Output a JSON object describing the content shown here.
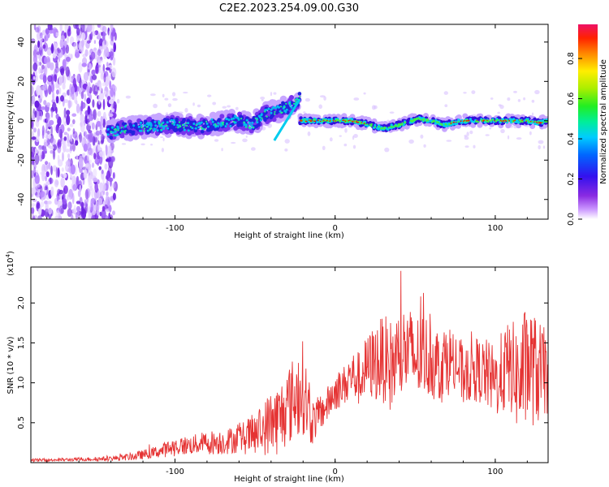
{
  "figure_title": "C2E2.2023.254.09.00.G30",
  "colors": {
    "snr_line": "#e53333",
    "axis": "#000000",
    "background": "#ffffff"
  },
  "chart_data": [
    {
      "type": "heatmap",
      "name": "spectrogram",
      "title": "C2E2.2023.254.09.00.G30",
      "xlabel": "Height of straight line (km)",
      "ylabel": "Frequency (Hz)",
      "xlim": [
        -190,
        133
      ],
      "ylim": [
        -50,
        49
      ],
      "xticks": [
        -100,
        0,
        100
      ],
      "xtick_labels": [
        "-100",
        "0",
        "100"
      ],
      "yticks": [
        -40,
        -20,
        0,
        20,
        40
      ],
      "ytick_labels": [
        "-40",
        "-20",
        "0",
        "20",
        "40"
      ],
      "ridge_segments": [
        {
          "x": [
            -142,
            -130,
            -115,
            -100,
            -85,
            -72,
            -62,
            -52,
            -44,
            -36,
            -30,
            -25,
            -22
          ],
          "y": [
            -6,
            -4,
            -3,
            -2,
            -3,
            -1,
            0,
            -2,
            3,
            5,
            7,
            9,
            11
          ]
        },
        {
          "x": [
            -22,
            -10,
            0,
            10,
            22,
            30,
            40,
            52,
            60,
            68,
            80,
            90,
            100,
            112,
            120,
            128,
            133
          ],
          "y": [
            0,
            0,
            0,
            0,
            -2,
            -4,
            -2,
            1,
            0,
            -2,
            0,
            0,
            0,
            0,
            0,
            -1,
            0
          ]
        }
      ],
      "noise_region_x": [
        -190,
        -137
      ],
      "colorbar": {
        "label": "Normalized spectral amplitude",
        "ticks": [
          0.0,
          0.2,
          0.4,
          0.6,
          0.8
        ],
        "tick_labels": [
          "0.0",
          "0.2",
          "0.4",
          "0.6",
          "0.8"
        ],
        "range": [
          0,
          0.97
        ]
      }
    },
    {
      "type": "line",
      "name": "snr",
      "xlabel": "Height of straight line (km)",
      "ylabel": "SNR (10 * v/v)",
      "multiplier_label": "(x10",
      "multiplier_exp": "4",
      "xlim": [
        -190,
        133
      ],
      "ylim": [
        0,
        2.45
      ],
      "xticks": [
        -100,
        0,
        100
      ],
      "xtick_labels": [
        "-100",
        "0",
        "100"
      ],
      "yticks": [
        0.5,
        1.0,
        1.5,
        2.0
      ],
      "ytick_labels": [
        "0.5",
        "1.0",
        "1.5",
        "2.0"
      ],
      "series": [
        {
          "name": "SNR",
          "x": [
            -190,
            -160,
            -140,
            -125,
            -110,
            -100,
            -90,
            -80,
            -70,
            -60,
            -50,
            -45,
            -40,
            -35,
            -30,
            -25,
            -20,
            -15,
            -12,
            -5,
            0,
            5,
            10,
            15,
            20,
            25,
            30,
            35,
            40,
            45,
            50,
            55,
            60,
            65,
            70,
            75,
            80,
            85,
            90,
            95,
            100,
            105,
            110,
            115,
            120,
            125,
            130,
            133
          ],
          "y": [
            0.03,
            0.04,
            0.05,
            0.08,
            0.14,
            0.2,
            0.22,
            0.25,
            0.26,
            0.3,
            0.35,
            0.42,
            0.5,
            0.55,
            0.7,
            0.82,
            0.95,
            0.5,
            0.55,
            0.72,
            0.9,
            0.95,
            1.1,
            1.05,
            1.2,
            1.25,
            1.3,
            1.2,
            1.35,
            1.4,
            1.3,
            1.35,
            1.3,
            1.2,
            1.3,
            1.25,
            1.1,
            1.2,
            1.15,
            1.1,
            1.0,
            1.15,
            1.2,
            1.0,
            1.25,
            1.15,
            1.1,
            1.15
          ],
          "spread": [
            0.02,
            0.02,
            0.03,
            0.05,
            0.08,
            0.12,
            0.12,
            0.15,
            0.16,
            0.18,
            0.28,
            0.32,
            0.45,
            0.45,
            0.5,
            0.55,
            0.6,
            0.3,
            0.25,
            0.22,
            0.25,
            0.25,
            0.3,
            0.35,
            0.4,
            0.5,
            0.55,
            0.6,
            0.6,
            0.6,
            0.55,
            0.55,
            0.5,
            0.5,
            0.45,
            0.45,
            0.4,
            0.45,
            0.4,
            0.45,
            0.45,
            0.55,
            0.6,
            0.7,
            0.8,
            0.7,
            0.6,
            0.55
          ]
        }
      ]
    }
  ]
}
